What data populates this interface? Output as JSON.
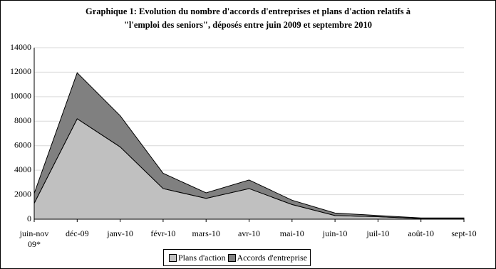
{
  "chart_data": {
    "type": "stacked-area",
    "title": [
      "Graphique 1: Evolution du nombre d'accords d'entreprises et plans d'action relatifs à",
      "\"l'emploi des seniors\", déposés entre juin 2009 et septembre 2010"
    ],
    "categories": [
      "juin-nov 09*",
      "déc-09",
      "janv-10",
      "févr-10",
      "mars-10",
      "avr-10",
      "mai-10",
      "juin-10",
      "juil-10",
      "août-10",
      "sept-10"
    ],
    "series": [
      {
        "name": "Plans d'action",
        "color": "#c0c0c0",
        "values": [
          1300,
          8200,
          5900,
          2500,
          1700,
          2500,
          1200,
          300,
          200,
          50,
          50
        ]
      },
      {
        "name": "Accords d'entreprise",
        "color": "#808080",
        "values": [
          800,
          3750,
          2550,
          1250,
          450,
          700,
          350,
          200,
          100,
          50,
          50
        ]
      }
    ],
    "ylim": [
      0,
      14000
    ],
    "yticks": [
      0,
      2000,
      4000,
      6000,
      8000,
      10000,
      12000,
      14000
    ],
    "grid": true,
    "legend": "bottom"
  }
}
